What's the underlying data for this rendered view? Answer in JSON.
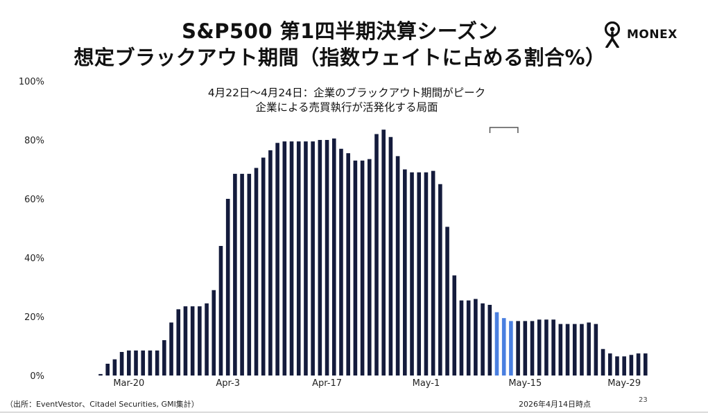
{
  "title": {
    "line1": "S&P500 第1四半期決算シーズン",
    "line2": "想定ブラックアウト期間（指数ウェイトに占める割合%）"
  },
  "logo": {
    "text": "MONEX",
    "icon": "monex-person-icon"
  },
  "annotation": {
    "line1": "4月22日～4月24日：企業のブラックアウト期間がピーク",
    "line2": "企業による売買執行が活発化する局面"
  },
  "footer": {
    "source": "（出所：EventVestor、Citadel Securities, GMI集計）",
    "as_of": "2026年4月14日時点",
    "page": "23"
  },
  "chart_data": {
    "type": "bar",
    "x_ticks": [
      "Mar-20",
      "Apr-3",
      "Apr-17",
      "May-1",
      "May-15",
      "May-29"
    ],
    "y_ticks": [
      "0%",
      "20%",
      "40%",
      "60%",
      "80%",
      "100%"
    ],
    "ylim": [
      0,
      100
    ],
    "grid": false,
    "colors": {
      "bar": "#141b3c",
      "highlight": "#4a7fe0",
      "bracket": "#555555"
    },
    "highlight_range": [
      56,
      58
    ],
    "values": [
      0.5,
      4,
      5.5,
      8,
      8.5,
      8.5,
      8.5,
      8.5,
      8.5,
      12,
      18,
      22.5,
      23.5,
      23.5,
      23.5,
      24.5,
      29,
      44,
      60,
      68.5,
      68.5,
      68.5,
      70.5,
      74,
      76.5,
      79,
      79.5,
      79.5,
      79.5,
      79.5,
      79.5,
      80,
      80,
      80.5,
      77,
      75.5,
      73,
      73,
      73.5,
      82,
      83.5,
      81,
      74.5,
      70,
      69,
      69,
      69,
      69.5,
      65,
      50.5,
      34,
      25.5,
      25.5,
      26,
      24.5,
      24,
      21.5,
      19.5,
      18.5,
      18.5,
      18.5,
      18.5,
      19,
      19,
      19,
      17.5,
      17.5,
      17.5,
      17.5,
      18,
      17.5,
      9,
      7.5,
      6.5,
      6.5,
      7,
      7.5,
      7.5
    ]
  }
}
